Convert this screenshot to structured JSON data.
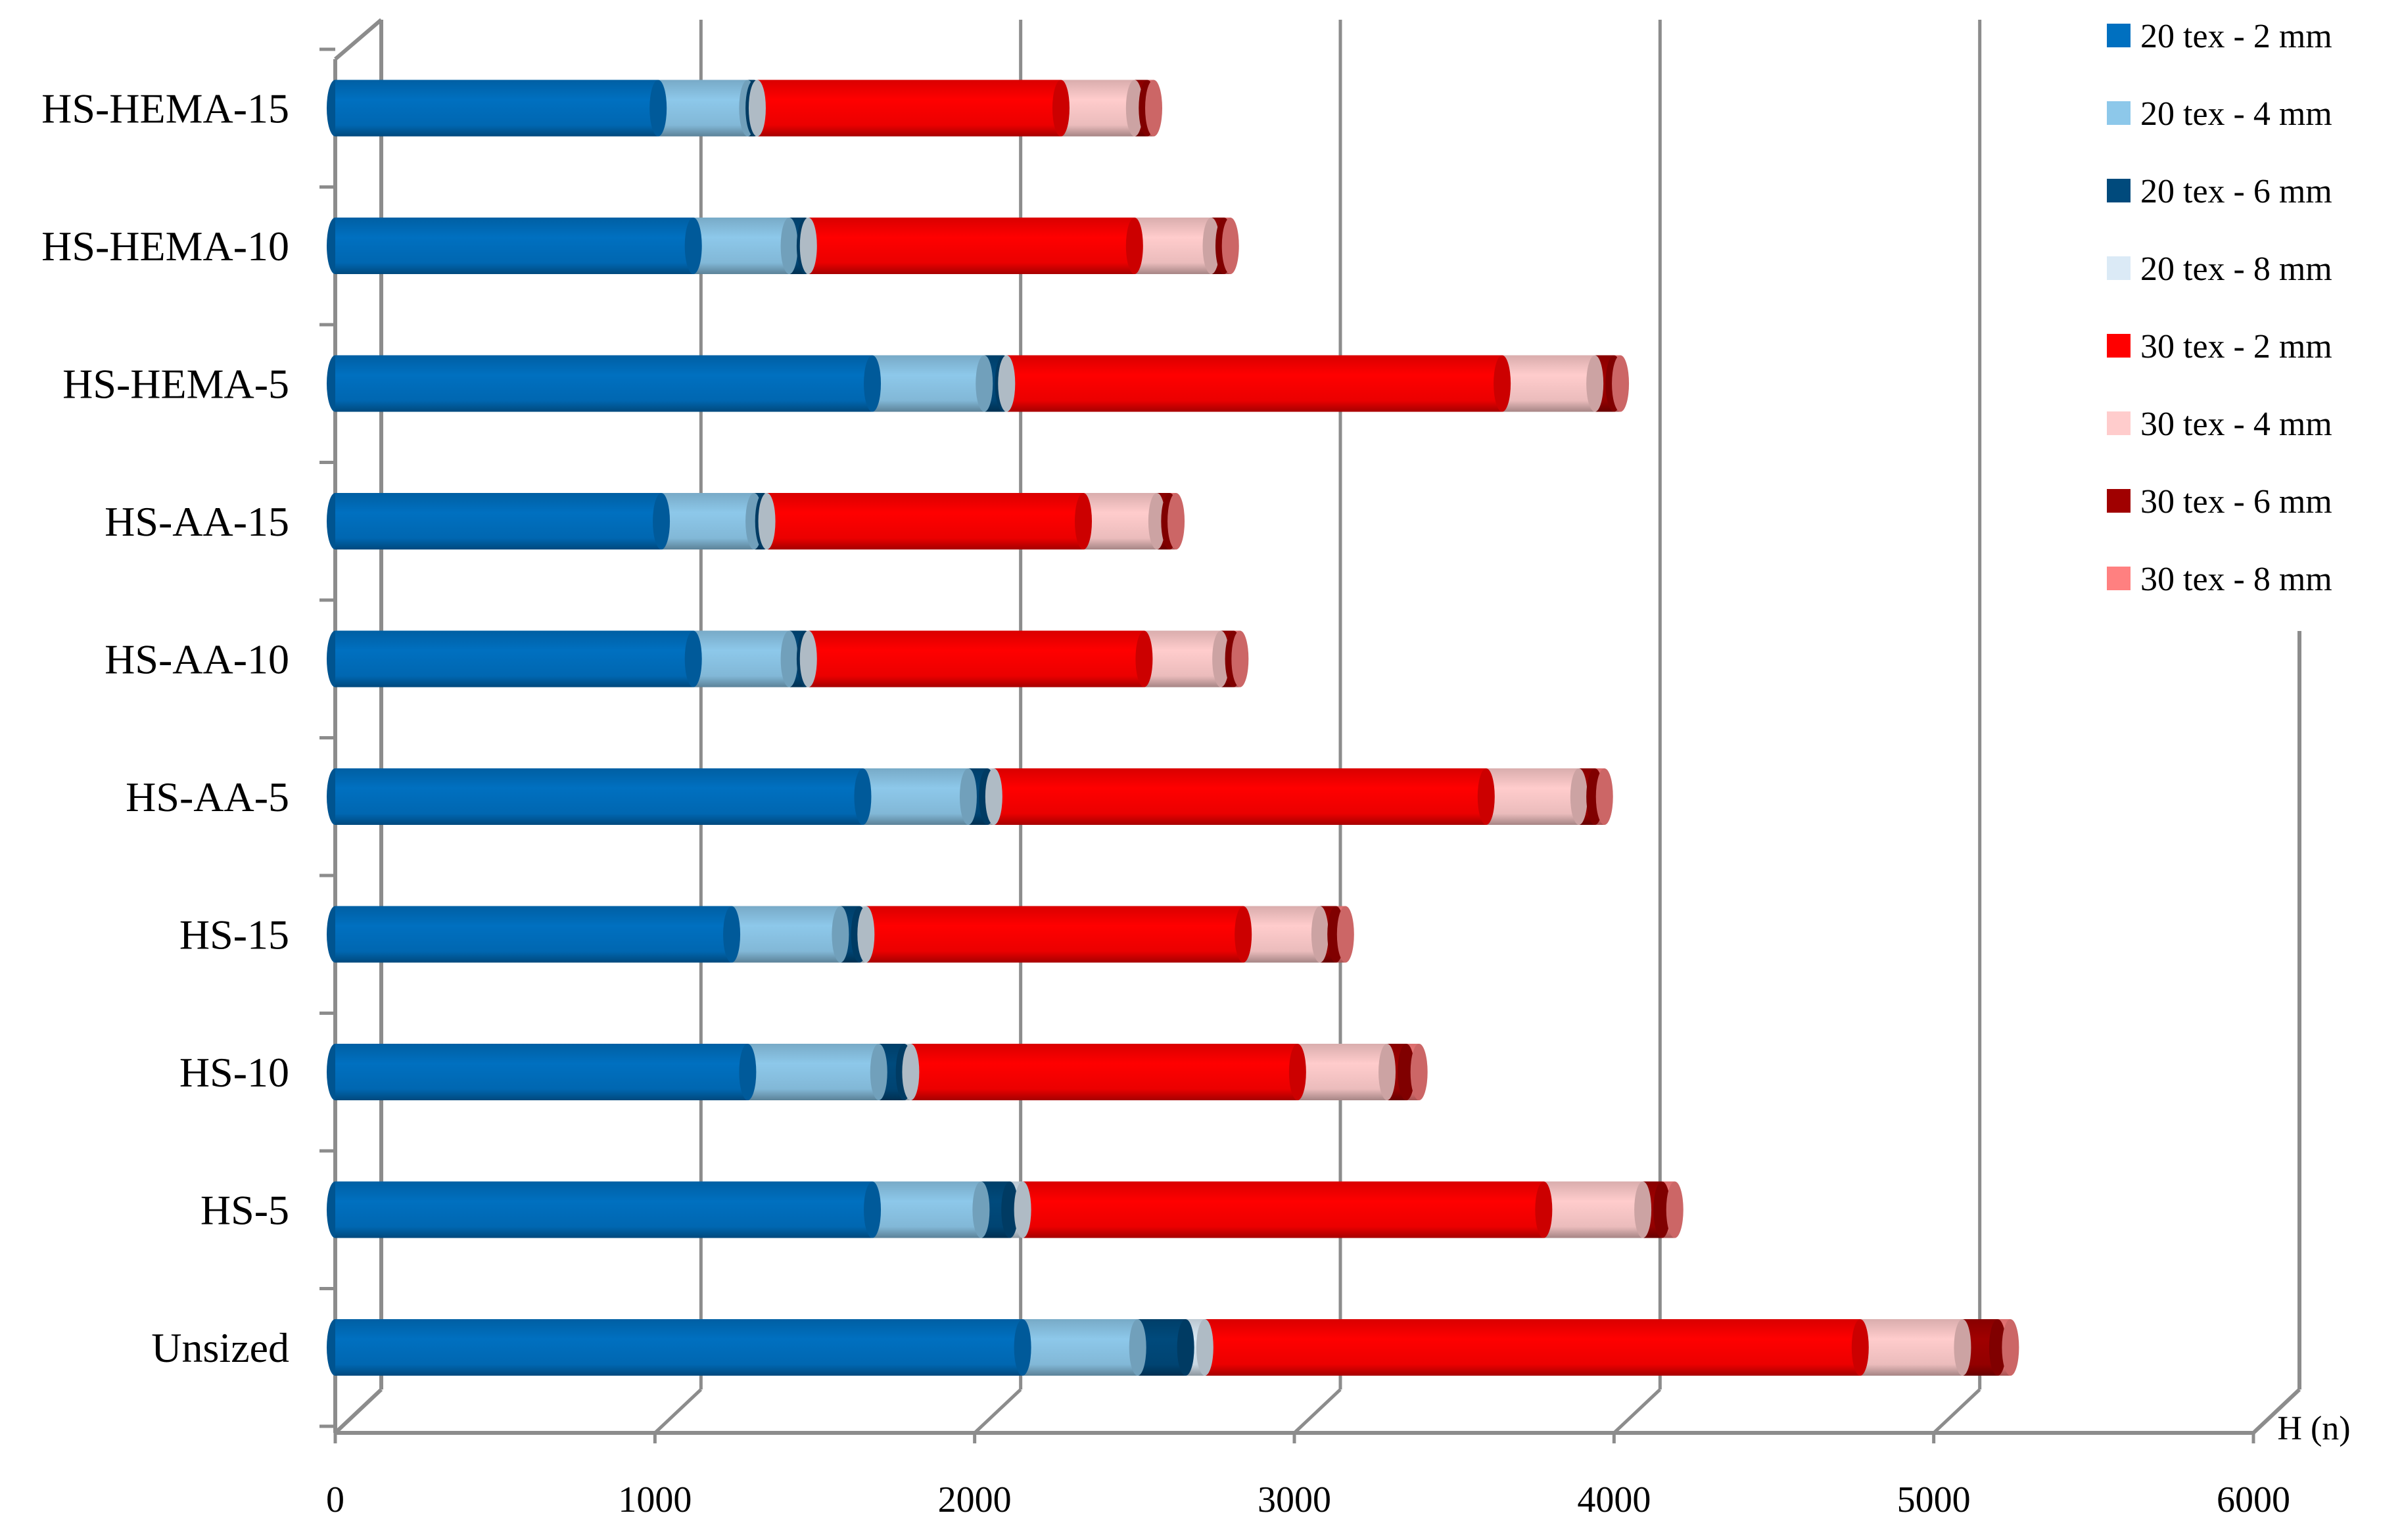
{
  "chart_data": {
    "type": "bar",
    "orientation": "horizontal",
    "stacked": true,
    "style": "3d-cylinder",
    "title": "",
    "xlabel": "H (n)",
    "ylabel": "",
    "xlim": [
      0,
      6000
    ],
    "xticks": [
      0,
      1000,
      2000,
      3000,
      4000,
      5000,
      6000
    ],
    "xtick_labels": [
      "0",
      "1000",
      "2000",
      "3000",
      "4000",
      "5000",
      "6000"
    ],
    "grid": true,
    "legend_position": "right",
    "categories": [
      "Unsized",
      "HS-5",
      "HS-10",
      "HS-15",
      "HS-AA-5",
      "HS-AA-10",
      "HS-AA-15",
      "HS-HEMA-5",
      "HS-HEMA-10",
      "HS-HEMA-15"
    ],
    "series": [
      {
        "name": "20 tex - 2 mm",
        "color": "#0070c0",
        "values": [
          2150,
          1680,
          1290,
          1240,
          1650,
          1120,
          1020,
          1680,
          1120,
          1010
        ]
      },
      {
        "name": "20 tex - 4 mm",
        "color": "#8dc8ea",
        "values": [
          360,
          340,
          410,
          340,
          330,
          300,
          290,
          350,
          300,
          280
        ]
      },
      {
        "name": "20 tex - 6 mm",
        "color": "#004a7c",
        "values": [
          150,
          90,
          80,
          60,
          60,
          50,
          30,
          60,
          50,
          20
        ]
      },
      {
        "name": "20 tex - 8 mm",
        "color": "#dbeaf6",
        "values": [
          60,
          40,
          20,
          20,
          20,
          10,
          10,
          10,
          10,
          10
        ]
      },
      {
        "name": "30 tex - 2 mm",
        "color": "#ff0000",
        "values": [
          2050,
          1630,
          1210,
          1180,
          1540,
          1050,
          990,
          1550,
          1020,
          950
        ]
      },
      {
        "name": "30 tex - 4 mm",
        "color": "#ffcccc",
        "values": [
          320,
          310,
          280,
          240,
          290,
          240,
          230,
          290,
          240,
          230
        ]
      },
      {
        "name": "30 tex - 6 mm",
        "color": "#a00000",
        "values": [
          110,
          60,
          60,
          50,
          50,
          40,
          40,
          60,
          40,
          40
        ]
      },
      {
        "name": "30 tex - 8 mm",
        "color": "#ff8080",
        "values": [
          40,
          40,
          40,
          30,
          30,
          20,
          20,
          20,
          20,
          20
        ]
      }
    ]
  }
}
